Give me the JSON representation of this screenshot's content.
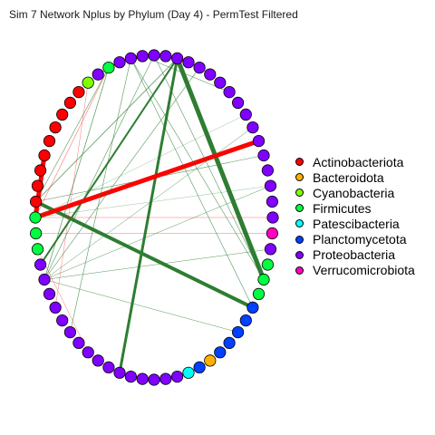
{
  "title": "Sim 7 Network Nplus by Phylum (Day 4) - PermTest Filtered",
  "chart_data": {
    "type": "network",
    "layout": "circle",
    "legend": {
      "placement": "right",
      "entries": [
        {
          "name": "Actinobacteriota",
          "color": "#FF0000"
        },
        {
          "name": "Bacteroidota",
          "color": "#FFB000"
        },
        {
          "name": "Cyanobacteria",
          "color": "#80FF00"
        },
        {
          "name": "Firmicutes",
          "color": "#00FF40"
        },
        {
          "name": "Patescibacteria",
          "color": "#00FFFF"
        },
        {
          "name": "Planctomycetota",
          "color": "#0040FF"
        },
        {
          "name": "Proteobacteria",
          "color": "#8000FF"
        },
        {
          "name": "Verrucomicrobiota",
          "color": "#FF00BF"
        }
      ]
    },
    "node_count": 64,
    "node_phyla": [
      "Proteobacteria",
      "Proteobacteria",
      "Proteobacteria",
      "Proteobacteria",
      "Proteobacteria",
      "Proteobacteria",
      "Proteobacteria",
      "Proteobacteria",
      "Proteobacteria",
      "Proteobacteria",
      "Proteobacteria",
      "Proteobacteria",
      "Proteobacteria",
      "Proteobacteria",
      "Proteobacteria",
      "Proteobacteria",
      "Proteobacteria",
      "Verrucomicrobiota",
      "Proteobacteria",
      "Firmicutes",
      "Firmicutes",
      "Firmicutes",
      "Planctomycetota",
      "Planctomycetota",
      "Planctomycetota",
      "Planctomycetota",
      "Planctomycetota",
      "Bacteroidota",
      "Planctomycetota",
      "Patescibacteria",
      "Proteobacteria",
      "Proteobacteria",
      "Proteobacteria",
      "Proteobacteria",
      "Proteobacteria",
      "Proteobacteria",
      "Proteobacteria",
      "Proteobacteria",
      "Proteobacteria",
      "Proteobacteria",
      "Proteobacteria",
      "Proteobacteria",
      "Proteobacteria",
      "Proteobacteria",
      "Proteobacteria",
      "Proteobacteria",
      "Firmicutes",
      "Firmicutes",
      "Firmicutes",
      "Actinobacteriota",
      "Actinobacteriota",
      "Actinobacteriota",
      "Actinobacteriota",
      "Actinobacteriota",
      "Actinobacteriota",
      "Actinobacteriota",
      "Actinobacteriota",
      "Actinobacteriota",
      "Cyanobacteria",
      "Proteobacteria",
      "Firmicutes",
      "Proteobacteria",
      "Proteobacteria",
      "Proteobacteria"
    ],
    "edges": [
      {
        "from": 2,
        "to": 20,
        "weight": 5,
        "sign": "positive"
      },
      {
        "from": 2,
        "to": 35,
        "weight": 3,
        "sign": "positive"
      },
      {
        "from": 2,
        "to": 45,
        "weight": 2,
        "sign": "positive"
      },
      {
        "from": 49,
        "to": 22,
        "weight": 4,
        "sign": "positive"
      },
      {
        "from": 49,
        "to": 2,
        "weight": 0.8,
        "sign": "positive"
      },
      {
        "from": 49,
        "to": 12,
        "weight": 0.6,
        "sign": "positive"
      },
      {
        "from": 49,
        "to": 60,
        "weight": 0.6,
        "sign": "positive"
      },
      {
        "from": 52,
        "to": 48,
        "weight": 5,
        "sign": "negative"
      },
      {
        "from": 48,
        "to": 11,
        "weight": 5,
        "sign": "negative"
      },
      {
        "from": 48,
        "to": 60,
        "weight": 0.6,
        "sign": "negative"
      },
      {
        "from": 48,
        "to": 16,
        "weight": 0.5,
        "sign": "negative"
      },
      {
        "from": 44,
        "to": 60,
        "weight": 0.7,
        "sign": "positive"
      },
      {
        "from": 44,
        "to": 4,
        "weight": 0.6,
        "sign": "positive"
      },
      {
        "from": 44,
        "to": 10,
        "weight": 0.5,
        "sign": "positive"
      },
      {
        "from": 44,
        "to": 14,
        "weight": 0.5,
        "sign": "positive"
      },
      {
        "from": 44,
        "to": 18,
        "weight": 0.5,
        "sign": "positive"
      },
      {
        "from": 44,
        "to": 24,
        "weight": 0.5,
        "sign": "positive"
      },
      {
        "from": 44,
        "to": 0,
        "weight": 0.6,
        "sign": "positive"
      },
      {
        "from": 40,
        "to": 62,
        "weight": 0.6,
        "sign": "positive"
      },
      {
        "from": 62,
        "to": 22,
        "weight": 0.6,
        "sign": "positive"
      },
      {
        "from": 62,
        "to": 20,
        "weight": 0.6,
        "sign": "positive"
      },
      {
        "from": 0,
        "to": 20,
        "weight": 0.6,
        "sign": "positive"
      },
      {
        "from": 63,
        "to": 7,
        "weight": 0.6,
        "sign": "positive"
      },
      {
        "from": 58,
        "to": 42,
        "weight": 0.5,
        "sign": "negative"
      },
      {
        "from": 38,
        "to": 46,
        "weight": 0.5,
        "sign": "negative"
      },
      {
        "from": 47,
        "to": 17,
        "weight": 0.5,
        "sign": "negative"
      },
      {
        "from": 48,
        "to": 9,
        "weight": 0.3,
        "sign": "positive"
      },
      {
        "from": 48,
        "to": 14,
        "weight": 0.3,
        "sign": "positive"
      }
    ]
  }
}
